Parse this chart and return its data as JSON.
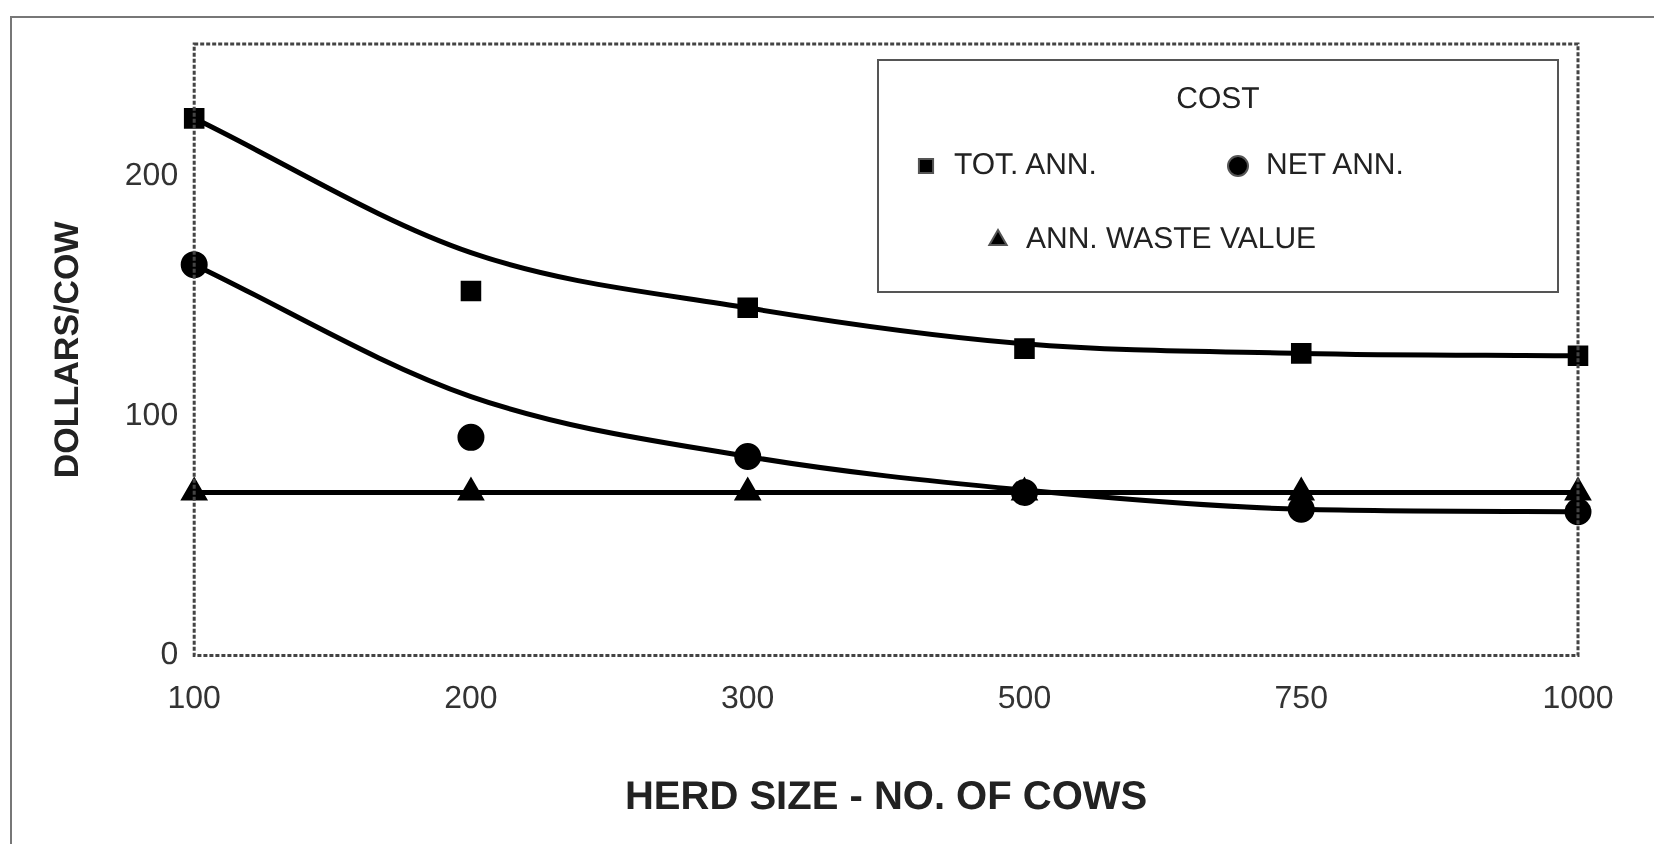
{
  "chart_data": {
    "type": "scatter",
    "xlabel": "HERD SIZE - NO. OF COWS",
    "ylabel": "DOLLARS/COW",
    "legend_title": "COST",
    "categories": [
      "100",
      "200",
      "300",
      "500",
      "750",
      "1000"
    ],
    "series": [
      {
        "name": "TOT. ANN.",
        "type": "scatter",
        "marker": "square",
        "color": "#000000",
        "values": [
          224,
          152,
          145,
          128,
          126,
          125
        ]
      },
      {
        "name": "NET ANN.",
        "type": "scatter",
        "marker": "circle",
        "color": "#000000",
        "values": [
          163,
          91,
          83,
          68,
          61,
          60
        ]
      },
      {
        "name": "ANN. WASTE VALUE",
        "type": "line",
        "marker": "triangle",
        "line_style": "solid",
        "color": "#000000",
        "values": [
          68,
          68,
          68,
          68,
          68,
          68
        ]
      },
      {
        "type": "line",
        "marker": "none",
        "line_style": "solid",
        "color": "#000000",
        "values": [
          224,
          168,
          145,
          130,
          126,
          125
        ]
      },
      {
        "type": "line",
        "marker": "none",
        "line_style": "solid",
        "color": "#000000",
        "values": [
          163,
          108,
          83,
          69,
          61,
          60
        ]
      }
    ],
    "ylim": [
      0,
      255
    ],
    "yticks": [
      0,
      100,
      200
    ],
    "grid": false,
    "legend": "top right"
  }
}
